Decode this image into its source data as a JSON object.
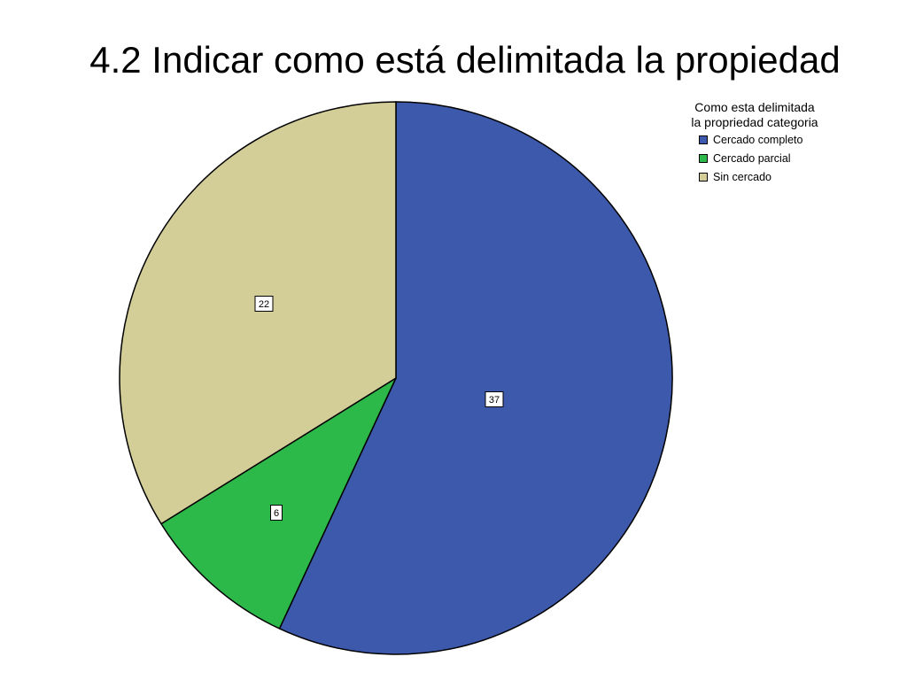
{
  "slide": {
    "title": "4.2 Indicar como está delimitada la propiedad"
  },
  "legend": {
    "title_line1": "Como esta delimitada",
    "title_line2": "la propriedad categoria"
  },
  "chart_data": {
    "type": "pie",
    "title": "4.2 Indicar como está delimitada la propiedad",
    "legend_title": "Como esta delimitada la propriedad categoria",
    "legend_position": "top-right",
    "categories": [
      "Cercado completo",
      "Cercado parcial",
      "Sin cercado"
    ],
    "values": [
      37,
      6,
      22
    ],
    "colors": [
      "#3d59ab",
      "#2db84a",
      "#d3cd97"
    ],
    "data_labels": [
      "37",
      "6",
      "22"
    ]
  }
}
